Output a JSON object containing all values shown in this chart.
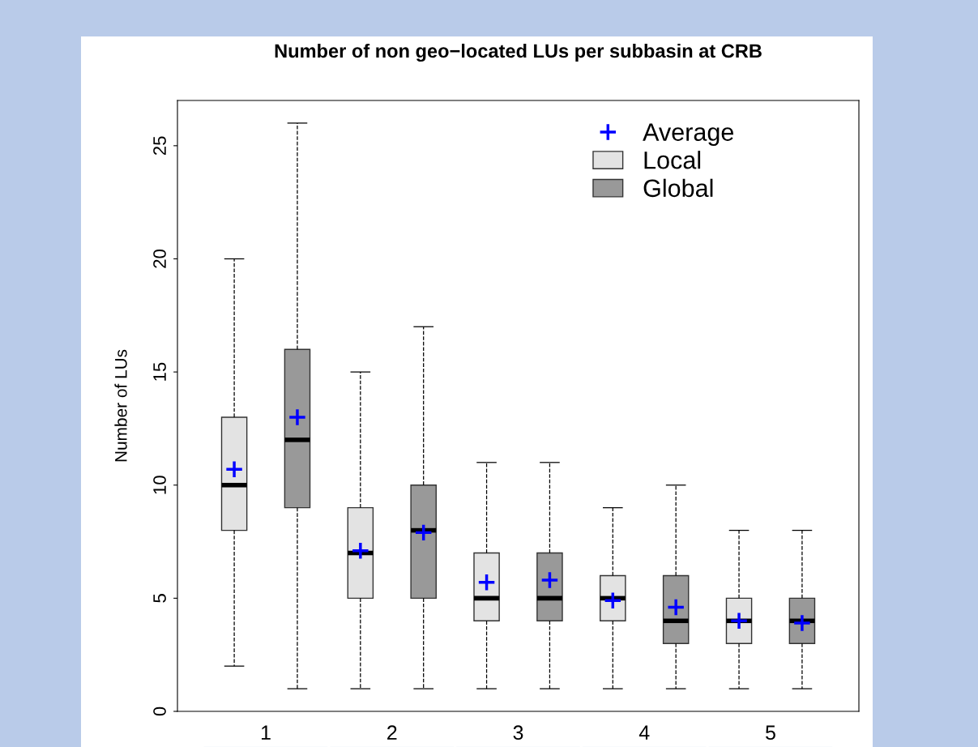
{
  "chart_data": {
    "type": "box",
    "title": "Number of non geo−located LUs per subbasin at CRB",
    "ylabel": "Number of LUs",
    "categories": [
      "1",
      "2",
      "3",
      "4",
      "5"
    ],
    "series": [
      {
        "name": "Local",
        "color": "#e3e3e3",
        "boxes": [
          {
            "low": 2,
            "q1": 8,
            "median": 10,
            "q3": 13,
            "high": 20,
            "mean": 10.7
          },
          {
            "low": 1,
            "q1": 5,
            "median": 7,
            "q3": 9,
            "high": 15,
            "mean": 7.1
          },
          {
            "low": 1,
            "q1": 4,
            "median": 5,
            "q3": 7,
            "high": 11,
            "mean": 5.7
          },
          {
            "low": 1,
            "q1": 4,
            "median": 5,
            "q3": 6,
            "high": 9,
            "mean": 4.9
          },
          {
            "low": 1,
            "q1": 3,
            "median": 4,
            "q3": 5,
            "high": 8,
            "mean": 4.0
          }
        ]
      },
      {
        "name": "Global",
        "color": "#999999",
        "boxes": [
          {
            "low": 1,
            "q1": 9,
            "median": 12,
            "q3": 16,
            "high": 26,
            "mean": 13.0
          },
          {
            "low": 1,
            "q1": 5,
            "median": 8,
            "q3": 10,
            "high": 17,
            "mean": 7.9
          },
          {
            "low": 1,
            "q1": 4,
            "median": 5,
            "q3": 7,
            "high": 11,
            "mean": 5.8
          },
          {
            "low": 1,
            "q1": 3,
            "median": 4,
            "q3": 6,
            "high": 10,
            "mean": 4.6
          },
          {
            "low": 1,
            "q1": 3,
            "median": 4,
            "q3": 5,
            "high": 8,
            "mean": 3.9
          }
        ]
      }
    ],
    "annotations": [
      "Average"
    ],
    "ylim": [
      0,
      27
    ],
    "yticks": [
      0,
      5,
      10,
      15,
      20,
      25
    ],
    "grid": false,
    "legend": "top right"
  }
}
